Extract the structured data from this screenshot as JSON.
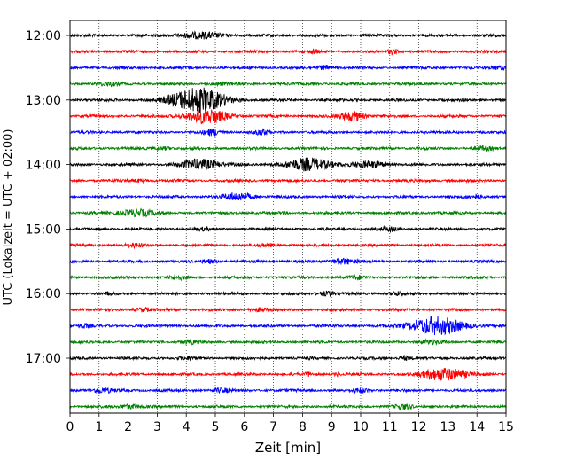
{
  "chart_data": {
    "type": "line",
    "title": "",
    "xlabel": "Zeit  [min]",
    "ylabel": "UTC (Lokalzeit = UTC + 02:00)",
    "xlim": [
      0,
      15
    ],
    "x_ticks": [
      0,
      1,
      2,
      3,
      4,
      5,
      6,
      7,
      8,
      9,
      10,
      11,
      12,
      13,
      14,
      15
    ],
    "y_ticks": [
      "12:00",
      "13:00",
      "14:00",
      "15:00",
      "16:00",
      "17:00"
    ],
    "trace_interval_min": 15,
    "start_time": "12:00",
    "color_cycle": [
      "#000000",
      "#ff0000",
      "#0000ff",
      "#008000"
    ],
    "grid": "vertical dotted",
    "traces": [
      {
        "time": "12:00",
        "color": "#000000",
        "events": [
          {
            "t": 4.5,
            "amp": 0.5,
            "width": 0.8
          }
        ]
      },
      {
        "time": "12:15",
        "color": "#ff0000",
        "events": [
          {
            "t": 8.4,
            "amp": 0.35,
            "width": 0.15
          },
          {
            "t": 11.1,
            "amp": 0.4,
            "width": 0.2
          }
        ]
      },
      {
        "time": "12:30",
        "color": "#0000ff",
        "events": [
          {
            "t": 8.8,
            "amp": 0.35,
            "width": 0.3
          },
          {
            "t": 14.8,
            "amp": 0.3,
            "width": 0.3
          }
        ]
      },
      {
        "time": "12:45",
        "color": "#008000",
        "events": [
          {
            "t": 1.3,
            "amp": 0.3,
            "width": 0.3
          },
          {
            "t": 5.2,
            "amp": 0.2,
            "width": 0.3
          }
        ]
      },
      {
        "time": "13:00",
        "color": "#000000",
        "events": [
          {
            "t": 4.4,
            "amp": 2.3,
            "width": 0.9
          }
        ]
      },
      {
        "time": "13:15",
        "color": "#ff0000",
        "events": [
          {
            "t": 4.7,
            "amp": 1.3,
            "width": 0.7
          },
          {
            "t": 9.7,
            "amp": 0.9,
            "width": 0.4
          }
        ]
      },
      {
        "time": "13:30",
        "color": "#0000ff",
        "events": [
          {
            "t": 4.9,
            "amp": 0.5,
            "width": 0.3
          },
          {
            "t": 6.6,
            "amp": 0.5,
            "width": 0.2
          }
        ]
      },
      {
        "time": "13:45",
        "color": "#008000",
        "events": [
          {
            "t": 3.2,
            "amp": 0.25,
            "width": 0.3
          },
          {
            "t": 14.2,
            "amp": 0.3,
            "width": 0.3
          }
        ]
      },
      {
        "time": "14:00",
        "color": "#000000",
        "events": [
          {
            "t": 4.5,
            "amp": 0.9,
            "width": 0.7
          },
          {
            "t": 8.2,
            "amp": 1.1,
            "width": 0.8
          },
          {
            "t": 10.3,
            "amp": 0.5,
            "width": 0.6
          }
        ]
      },
      {
        "time": "14:15",
        "color": "#ff0000",
        "events": [
          {
            "t": 2.4,
            "amp": 0.2,
            "width": 0.3
          }
        ]
      },
      {
        "time": "14:30",
        "color": "#0000ff",
        "events": [
          {
            "t": 5.8,
            "amp": 0.7,
            "width": 0.5
          },
          {
            "t": 13.9,
            "amp": 0.3,
            "width": 0.3
          }
        ]
      },
      {
        "time": "14:45",
        "color": "#008000",
        "events": [
          {
            "t": 2.3,
            "amp": 0.6,
            "width": 0.6
          }
        ]
      },
      {
        "time": "15:00",
        "color": "#000000",
        "events": [
          {
            "t": 11.0,
            "amp": 0.35,
            "width": 0.3
          },
          {
            "t": 4.6,
            "amp": 0.2,
            "width": 0.3
          }
        ]
      },
      {
        "time": "15:15",
        "color": "#ff0000",
        "events": [
          {
            "t": 2.2,
            "amp": 0.3,
            "width": 0.3
          },
          {
            "t": 6.8,
            "amp": 0.2,
            "width": 0.3
          }
        ]
      },
      {
        "time": "15:30",
        "color": "#0000ff",
        "events": [
          {
            "t": 9.4,
            "amp": 0.5,
            "width": 0.4
          },
          {
            "t": 4.8,
            "amp": 0.3,
            "width": 0.3
          }
        ]
      },
      {
        "time": "15:45",
        "color": "#008000",
        "events": [
          {
            "t": 3.7,
            "amp": 0.3,
            "width": 0.3
          },
          {
            "t": 9.9,
            "amp": 0.25,
            "width": 0.3
          }
        ]
      },
      {
        "time": "16:00",
        "color": "#000000",
        "events": [
          {
            "t": 8.8,
            "amp": 0.35,
            "width": 0.3
          },
          {
            "t": 11.2,
            "amp": 0.3,
            "width": 0.2
          },
          {
            "t": 1.3,
            "amp": 0.25,
            "width": 0.1
          }
        ]
      },
      {
        "time": "16:15",
        "color": "#ff0000",
        "events": [
          {
            "t": 2.5,
            "amp": 0.3,
            "width": 0.3
          },
          {
            "t": 6.5,
            "amp": 0.3,
            "width": 0.3
          }
        ]
      },
      {
        "time": "16:30",
        "color": "#0000ff",
        "events": [
          {
            "t": 12.6,
            "amp": 1.6,
            "width": 0.9
          },
          {
            "t": 0.5,
            "amp": 0.3,
            "width": 0.2
          }
        ]
      },
      {
        "time": "16:45",
        "color": "#008000",
        "events": [
          {
            "t": 4.1,
            "amp": 0.3,
            "width": 0.3
          },
          {
            "t": 12.4,
            "amp": 0.3,
            "width": 0.4
          }
        ]
      },
      {
        "time": "17:00",
        "color": "#000000",
        "events": [
          {
            "t": 11.5,
            "amp": 0.35,
            "width": 0.2
          },
          {
            "t": 4.0,
            "amp": 0.2,
            "width": 0.3
          }
        ]
      },
      {
        "time": "17:15",
        "color": "#ff0000",
        "events": [
          {
            "t": 12.9,
            "amp": 1.2,
            "width": 0.7
          },
          {
            "t": 8.2,
            "amp": 0.3,
            "width": 0.1
          },
          {
            "t": 9.2,
            "amp": 0.3,
            "width": 0.1
          }
        ]
      },
      {
        "time": "17:30",
        "color": "#0000ff",
        "events": [
          {
            "t": 1.1,
            "amp": 0.35,
            "width": 0.4
          },
          {
            "t": 5.2,
            "amp": 0.3,
            "width": 0.3
          },
          {
            "t": 10.0,
            "amp": 0.3,
            "width": 0.3
          }
        ]
      },
      {
        "time": "17:45",
        "color": "#008000",
        "events": [
          {
            "t": 2.1,
            "amp": 0.35,
            "width": 0.4
          },
          {
            "t": 11.5,
            "amp": 0.4,
            "width": 0.3
          }
        ]
      }
    ]
  }
}
